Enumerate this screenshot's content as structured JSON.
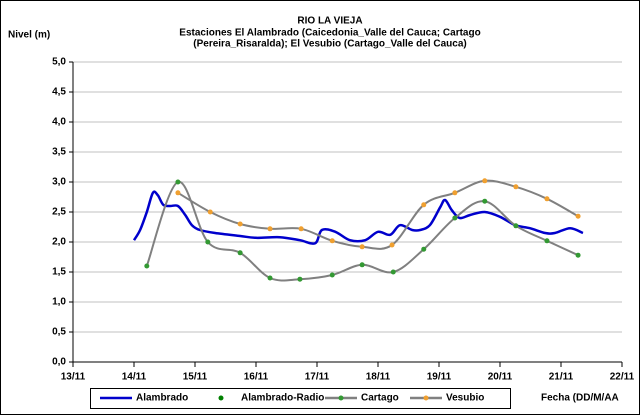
{
  "chart_data": {
    "type": "line",
    "title": "RIO LA VIEJA",
    "subtitle": [
      "Estaciones El Alambrado (Caicedonia_Valle del Cauca; Cartago",
      "(Pereira_Risaralda);  El Vesubio (Cartago_Valle del Cauca)"
    ],
    "y_label": "Nivel (m)",
    "x_label": "Fecha (DD/M/AA",
    "xlim": [
      0,
      9
    ],
    "xticks": [
      {
        "value": 0,
        "label": "13/11"
      },
      {
        "value": 1,
        "label": "14/11"
      },
      {
        "value": 2,
        "label": "15/11"
      },
      {
        "value": 3,
        "label": "16/11"
      },
      {
        "value": 4,
        "label": "17/11"
      },
      {
        "value": 5,
        "label": "18/11"
      },
      {
        "value": 6,
        "label": "19/11"
      },
      {
        "value": 7,
        "label": "20/11"
      },
      {
        "value": 8,
        "label": "21/11"
      },
      {
        "value": 9,
        "label": "22/11"
      }
    ],
    "ylim": [
      0,
      5
    ],
    "yticks": [
      {
        "value": 0,
        "label": "0,0"
      },
      {
        "value": 0.5,
        "label": "0,5"
      },
      {
        "value": 1,
        "label": "1,0"
      },
      {
        "value": 1.5,
        "label": "1,5"
      },
      {
        "value": 2,
        "label": "2,0"
      },
      {
        "value": 2.5,
        "label": "2,5"
      },
      {
        "value": 3,
        "label": "3,0"
      },
      {
        "value": 3.5,
        "label": "3,5"
      },
      {
        "value": 4,
        "label": "4,0"
      },
      {
        "value": 4.5,
        "label": "4,5"
      },
      {
        "value": 5,
        "label": "5,0"
      }
    ],
    "grid": true,
    "legend": "bottom",
    "series": [
      {
        "name": "Alambrado",
        "color": "#0000cc",
        "line_color": "#0000cc",
        "markers": false,
        "x": [
          1.0,
          1.1,
          1.21,
          1.31,
          1.39,
          1.48,
          1.59,
          1.72,
          1.84,
          1.95,
          2.08,
          2.33,
          2.74,
          3.0,
          3.39,
          3.72,
          3.97,
          4.08,
          4.3,
          4.54,
          4.79,
          5.0,
          5.2,
          5.36,
          5.56,
          5.69,
          5.85,
          6.02,
          6.1,
          6.21,
          6.34,
          6.51,
          6.75,
          7.0,
          7.25,
          7.49,
          7.74,
          7.9,
          8.15,
          8.36
        ],
        "values": [
          2.03,
          2.2,
          2.5,
          2.82,
          2.78,
          2.62,
          2.6,
          2.6,
          2.45,
          2.28,
          2.2,
          2.15,
          2.1,
          2.07,
          2.08,
          2.03,
          1.98,
          2.2,
          2.17,
          2.03,
          2.03,
          2.17,
          2.12,
          2.28,
          2.2,
          2.2,
          2.28,
          2.58,
          2.7,
          2.53,
          2.4,
          2.45,
          2.5,
          2.42,
          2.28,
          2.23,
          2.15,
          2.15,
          2.23,
          2.15
        ]
      },
      {
        "name": "Alambrado-Radio",
        "color": "#008000",
        "line_color": null,
        "markers": true,
        "x": [],
        "values": []
      },
      {
        "name": "Cartago",
        "color": "#339933",
        "line_color": "#808080",
        "markers": true,
        "x": [
          1.21,
          1.72,
          2.21,
          2.74,
          3.23,
          3.72,
          4.25,
          4.74,
          5.25,
          5.75,
          6.26,
          6.75,
          7.26,
          7.77,
          8.28
        ],
        "values": [
          1.6,
          3.0,
          2.0,
          1.82,
          1.4,
          1.38,
          1.45,
          1.62,
          1.5,
          1.88,
          2.4,
          2.68,
          2.27,
          2.02,
          1.78
        ]
      },
      {
        "name": "Vesubio",
        "color": "#f0a030",
        "line_color": "#808080",
        "markers": true,
        "x": [
          1.72,
          2.25,
          2.74,
          3.23,
          3.74,
          4.25,
          4.74,
          5.23,
          5.75,
          6.26,
          6.75,
          7.26,
          7.77,
          8.28
        ],
        "values": [
          2.82,
          2.5,
          2.3,
          2.22,
          2.22,
          2.02,
          1.92,
          1.95,
          2.62,
          2.82,
          3.02,
          2.92,
          2.72,
          2.43
        ]
      }
    ]
  }
}
